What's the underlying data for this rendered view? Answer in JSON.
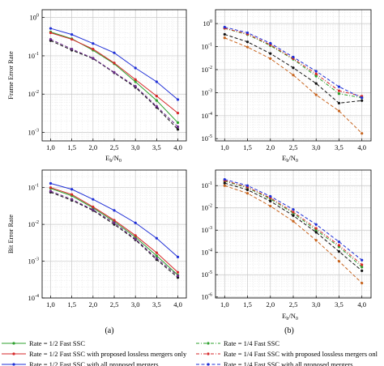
{
  "chart_data": [
    {
      "type": "line",
      "log_y": true,
      "x": [
        1.0,
        1.5,
        2.0,
        2.5,
        3.0,
        3.5,
        4.0
      ],
      "x_tick_labels": [
        "1,0",
        "1,5",
        "2,0",
        "2,5",
        "3,0",
        "3,5",
        "4,0"
      ],
      "xlim": [
        0.8,
        4.2
      ],
      "ylim": [
        0.0006,
        1.6
      ],
      "y_ticks": [
        {
          "value": 1,
          "base": "10",
          "exp": "0"
        },
        {
          "value": 0.1,
          "base": "10",
          "exp": "-1"
        },
        {
          "value": 0.01,
          "base": "10",
          "exp": "-2"
        },
        {
          "value": 0.001,
          "base": "10",
          "exp": "-3"
        }
      ],
      "ylabel": "Frame Error Rate",
      "xlabel": "",
      "grid": true,
      "series": [
        {
          "name": "Rate = 1/2 Fast SSC",
          "color": "#2ca02c",
          "dash": "solid",
          "values": [
            0.42,
            0.28,
            0.14,
            0.062,
            0.021,
            0.0068,
            0.0018
          ]
        },
        {
          "name": "Rate = 1/2 Fast SSC with proposed lossless mergers only",
          "color": "#d62728",
          "dash": "solid",
          "values": [
            0.4,
            0.27,
            0.15,
            0.065,
            0.024,
            0.0089,
            0.0032
          ]
        },
        {
          "name": "Rate = 1/2 Fast SSC with all proposed mergers",
          "color": "#1f2fd6",
          "dash": "solid",
          "values": [
            0.52,
            0.36,
            0.21,
            0.12,
            0.048,
            0.021,
            0.0072
          ]
        },
        {
          "name": "",
          "color": "#111111",
          "dash": "dashed",
          "values": [
            0.25,
            0.14,
            0.085,
            0.036,
            0.015,
            0.0045,
            0.0012
          ]
        },
        {
          "name": "",
          "color": "#6b2a8a",
          "dash": "dashed",
          "values": [
            0.27,
            0.15,
            0.087,
            0.037,
            0.016,
            0.0048,
            0.0014
          ]
        }
      ]
    },
    {
      "type": "line",
      "log_y": true,
      "x": [
        1.0,
        1.5,
        2.0,
        2.5,
        3.0,
        3.5,
        4.0
      ],
      "x_tick_labels": [
        "1,0",
        "1,5",
        "2,0",
        "2,5",
        "3,0",
        "3,5",
        "4,0"
      ],
      "xlim": [
        0.8,
        4.2
      ],
      "ylim": [
        8e-06,
        4.0
      ],
      "y_ticks": [
        {
          "value": 1,
          "base": "10",
          "exp": "0"
        },
        {
          "value": 0.1,
          "base": "10",
          "exp": "-1"
        },
        {
          "value": 0.01,
          "base": "10",
          "exp": "-2"
        },
        {
          "value": 0.001,
          "base": "10",
          "exp": "-3"
        },
        {
          "value": 0.0001,
          "base": "10",
          "exp": "-4"
        },
        {
          "value": 1e-05,
          "base": "10",
          "exp": "-5"
        }
      ],
      "ylabel": "",
      "xlabel": "",
      "grid": true,
      "series": [
        {
          "name": "Rate = 1/4 Fast SSC",
          "color": "#2ca02c",
          "dash": "dashdot",
          "values": [
            0.62,
            0.33,
            0.11,
            0.028,
            0.0052,
            0.0009,
            0.0006
          ]
        },
        {
          "name": "Rate = 1/4 Fast SSC with proposed lossless mergers only",
          "color": "#d62728",
          "dash": "dashdot",
          "values": [
            0.63,
            0.35,
            0.12,
            0.03,
            0.0065,
            0.0012,
            0.0007
          ]
        },
        {
          "name": "Rate = 1/4 Fast SSC with all proposed mergers",
          "color": "#1f2fd6",
          "dash": "dashed",
          "values": [
            0.7,
            0.4,
            0.14,
            0.035,
            0.0085,
            0.0018,
            0.0006
          ]
        },
        {
          "name": "",
          "color": "#111111",
          "dash": "dashed",
          "values": [
            0.34,
            0.16,
            0.05,
            0.012,
            0.0025,
            0.00035,
            0.00045
          ]
        },
        {
          "name": "",
          "color": "#c8641e",
          "dash": "dashed",
          "values": [
            0.24,
            0.095,
            0.03,
            0.0058,
            0.0008,
            0.00016,
            1.7e-05
          ]
        }
      ]
    },
    {
      "type": "line",
      "log_y": true,
      "x": [
        1.0,
        1.5,
        2.0,
        2.5,
        3.0,
        3.5,
        4.0
      ],
      "x_tick_labels": [
        "1,0",
        "1,5",
        "2,0",
        "2,5",
        "3,0",
        "3,5",
        "4,0"
      ],
      "xlim": [
        0.8,
        4.2
      ],
      "ylim": [
        0.0001,
        0.3
      ],
      "y_ticks": [
        {
          "value": 0.1,
          "base": "10",
          "exp": "-1"
        },
        {
          "value": 0.01,
          "base": "10",
          "exp": "-2"
        },
        {
          "value": 0.001,
          "base": "10",
          "exp": "-3"
        },
        {
          "value": 0.0001,
          "base": "10",
          "exp": "-4"
        }
      ],
      "ylabel": "Bit Error Rate",
      "xlabel": "",
      "grid": true,
      "series": [
        {
          "name": "",
          "color": "#2ca02c",
          "dash": "solid",
          "values": [
            0.095,
            0.06,
            0.028,
            0.012,
            0.0045,
            0.0014,
            0.00042
          ]
        },
        {
          "name": "",
          "color": "#d62728",
          "dash": "solid",
          "values": [
            0.1,
            0.065,
            0.03,
            0.013,
            0.005,
            0.0017,
            0.0005
          ]
        },
        {
          "name": "",
          "color": "#1f2fd6",
          "dash": "solid",
          "values": [
            0.13,
            0.09,
            0.048,
            0.024,
            0.011,
            0.0042,
            0.0013
          ]
        },
        {
          "name": "",
          "color": "#111111",
          "dash": "dashed",
          "values": [
            0.075,
            0.045,
            0.024,
            0.01,
            0.0038,
            0.0011,
            0.00036
          ]
        },
        {
          "name": "",
          "color": "#6b2a8a",
          "dash": "dashed",
          "values": [
            0.08,
            0.048,
            0.025,
            0.011,
            0.004,
            0.0012,
            0.0004
          ]
        }
      ]
    },
    {
      "type": "line",
      "log_y": true,
      "x": [
        1.0,
        1.5,
        2.0,
        2.5,
        3.0,
        3.5,
        4.0
      ],
      "x_tick_labels": [
        "1,0",
        "1,5",
        "2,0",
        "2,5",
        "3,0",
        "3,5",
        "4,0"
      ],
      "xlim": [
        0.8,
        4.2
      ],
      "ylim": [
        9e-07,
        0.5
      ],
      "y_ticks": [
        {
          "value": 0.1,
          "base": "10",
          "exp": "-1"
        },
        {
          "value": 0.01,
          "base": "10",
          "exp": "-2"
        },
        {
          "value": 0.001,
          "base": "10",
          "exp": "-3"
        },
        {
          "value": 0.0001,
          "base": "10",
          "exp": "-4"
        },
        {
          "value": 1e-05,
          "base": "10",
          "exp": "-5"
        },
        {
          "value": 1e-06,
          "base": "10",
          "exp": "-6"
        }
      ],
      "ylabel": "",
      "xlabel": "",
      "grid": true,
      "series": [
        {
          "name": "",
          "color": "#2ca02c",
          "dash": "dashdot",
          "values": [
            0.16,
            0.08,
            0.025,
            0.0058,
            0.001,
            0.00018,
            2.2e-05
          ]
        },
        {
          "name": "",
          "color": "#d62728",
          "dash": "dashdot",
          "values": [
            0.17,
            0.085,
            0.028,
            0.0065,
            0.0012,
            0.00021,
            2.8e-05
          ]
        },
        {
          "name": "",
          "color": "#1f2fd6",
          "dash": "dashed",
          "values": [
            0.19,
            0.1,
            0.033,
            0.0085,
            0.0018,
            0.0003,
            4.5e-05
          ]
        },
        {
          "name": "",
          "color": "#111111",
          "dash": "dashed",
          "values": [
            0.13,
            0.065,
            0.02,
            0.0045,
            0.0008,
            0.00011,
            1.5e-05
          ]
        },
        {
          "name": "",
          "color": "#c8641e",
          "dash": "dashed",
          "values": [
            0.1,
            0.045,
            0.012,
            0.0025,
            0.00035,
            4e-05,
            4.2e-06
          ]
        }
      ]
    }
  ],
  "xaxis_label": {
    "base": "E",
    "sub1": "b",
    "mid": "/N",
    "sub2": "0"
  },
  "captions": [
    "(a)",
    "(b)"
  ],
  "legend_left": [
    {
      "label": "Rate = 1/2 Fast SSC",
      "color": "#2ca02c",
      "dash": "solid"
    },
    {
      "label": "Rate = 1/2 Fast SSC with proposed lossless mergers only",
      "color": "#d62728",
      "dash": "solid"
    },
    {
      "label": "Rate = 1/2 Fast SSC with all proposed mergers",
      "color": "#1f2fd6",
      "dash": "solid"
    }
  ],
  "legend_right": [
    {
      "label": "Rate = 1/4 Fast SSC",
      "color": "#2ca02c",
      "dash": "dashdot"
    },
    {
      "label": "Rate = 1/4 Fast SSC with proposed lossless mergers onl",
      "color": "#d62728",
      "dash": "dashdot"
    },
    {
      "label": "Rate = 1/4 Fast SSC with all proposed mergers",
      "color": "#1f2fd6",
      "dash": "dashed"
    }
  ]
}
